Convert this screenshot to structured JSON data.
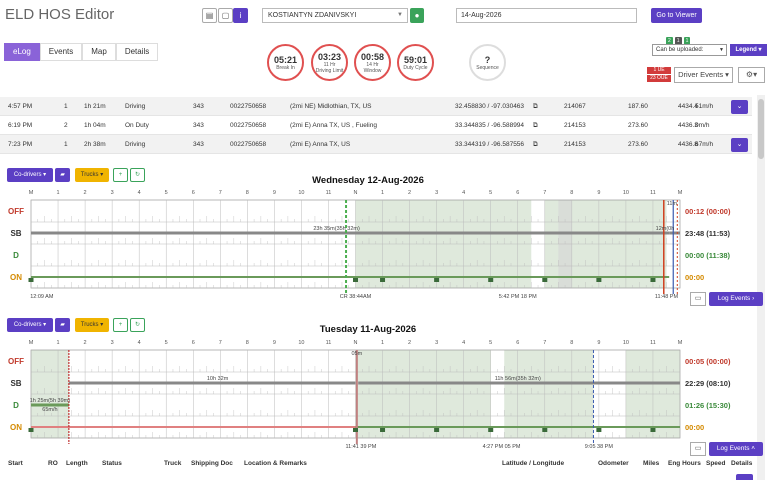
{
  "app": {
    "title": "ELD HOS Editor"
  },
  "header": {
    "driver": "KOSTIANTYN ZDANIVSKYI",
    "date": "14-Aug-2026",
    "goto_label": "Go to Viewer"
  },
  "tabs": [
    "eLog",
    "Events",
    "Map",
    "Details"
  ],
  "clocks": [
    {
      "value": "05:21",
      "label": "Break In",
      "label2": ""
    },
    {
      "value": "03:23",
      "label": "11 Hr",
      "label2": "Driving Limit"
    },
    {
      "value": "00:58",
      "label": "14 Hr",
      "label2": "Window"
    },
    {
      "value": "59:01",
      "label": "Duty Cycle",
      "label2": ""
    },
    {
      "value": "?",
      "label": "Sequence",
      "label2": ""
    }
  ],
  "right": {
    "badges": [
      "2",
      "1",
      "1"
    ],
    "upload_select": "Can be uploaded:",
    "legend": "Legend",
    "ue": "1 UE",
    "oue": "23 OUE",
    "driver_events": "Driver Events"
  },
  "rows": [
    {
      "time": "4:57 PM",
      "ro": "1",
      "length": "1h 21m",
      "status": "Driving",
      "truck": "343",
      "doc": "0022750658",
      "loc": "(2mi NE) Midlothian, TX, US",
      "latlng": "32.458830 / -97.030463",
      "id": "214067",
      "odo": "187.60",
      "hours": "4434.4",
      "speed": "51m/h"
    },
    {
      "time": "6:19 PM",
      "ro": "2",
      "length": "1h 04m",
      "status": "On Duty",
      "truck": "343",
      "doc": "0022750658",
      "loc": "(2mi E) Anna TX, US , Fueling",
      "latlng": "33.344835 / -96.588994",
      "id": "214153",
      "odo": "273.60",
      "hours": "4436.3",
      "speed": "0m/h"
    },
    {
      "time": "7:23 PM",
      "ro": "1",
      "length": "2h 38m",
      "status": "Driving",
      "truck": "343",
      "doc": "0022750658",
      "loc": "(2mi E) Anna TX, US",
      "latlng": "33.344319 / -96.587556",
      "id": "214153",
      "odo": "273.60",
      "hours": "4436.8",
      "speed": "67m/h"
    }
  ],
  "toolbar": {
    "codrivers": "Co-drivers",
    "trucks": "Trucks"
  },
  "status_labels": [
    "OFF",
    "SB",
    "D",
    "ON"
  ],
  "hour_ticks": [
    "M",
    "1",
    "2",
    "3",
    "4",
    "5",
    "6",
    "7",
    "8",
    "9",
    "10",
    "11",
    "N",
    "1",
    "2",
    "3",
    "4",
    "5",
    "6",
    "7",
    "8",
    "9",
    "10",
    "11",
    "M"
  ],
  "log_events_label": "Log Events",
  "days": [
    {
      "title": "Wednesday 12-Aug-2026",
      "totals": [
        {
          "value": "00:12 (00:00)",
          "color": "#c0392b"
        },
        {
          "value": "23:48 (11:53)",
          "color": "#333333"
        },
        {
          "value": "00:00 (11:38)",
          "color": "#3a8a3a"
        },
        {
          "value": "00:00",
          "color": "#d48a00"
        }
      ],
      "annotations": {
        "sb_long": "23h 35m(35h 32m)",
        "sb_right": "12m(0h",
        "off_top": "11m",
        "start": "12:09 AM",
        "noon": "CR 38:44AM",
        "pm": "5:42 PM 18 PM",
        "end": "11:48 PM"
      }
    },
    {
      "title": "Tuesday 11-Aug-2026",
      "totals": [
        {
          "value": "00:05 (00:00)",
          "color": "#c0392b"
        },
        {
          "value": "22:29 (08:10)",
          "color": "#333333"
        },
        {
          "value": "01:26 (15:30)",
          "color": "#3a8a3a"
        },
        {
          "value": "00:00",
          "color": "#d48a00"
        }
      ],
      "annotations": {
        "sb_a": "10h 32m",
        "sb_b": "11h 56m(35h 32m)",
        "off_top": "05m",
        "d_a": "1h 25m(5h 39m)",
        "d_speed": "65m/h",
        "noon": "11:41 39 PM",
        "pm": "4:27 PM 05 PM",
        "end": "9:05 38 PM"
      }
    }
  ],
  "table_headers": [
    "Start",
    "RO",
    "Length",
    "Status",
    "Truck",
    "Shipping Doc",
    "Location & Remarks",
    "Latitude / Longitude",
    "Odometer",
    "Miles",
    "Eng Hours",
    "Speed",
    "Details"
  ]
}
